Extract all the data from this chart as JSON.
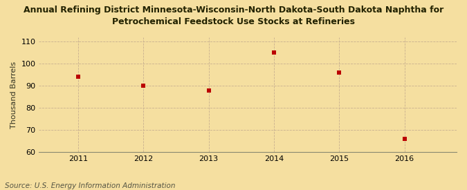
{
  "title_line1": "Annual Refining District Minnesota-Wisconsin-North Dakota-South Dakota Naphtha for",
  "title_line2": "Petrochemical Feedstock Use Stocks at Refineries",
  "ylabel": "Thousand Barrels",
  "source": "Source: U.S. Energy Information Administration",
  "years": [
    2011,
    2012,
    2013,
    2014,
    2015,
    2016
  ],
  "values": [
    94,
    90,
    88,
    105,
    96,
    66
  ],
  "ylim": [
    60,
    112
  ],
  "yticks": [
    60,
    70,
    80,
    90,
    100,
    110
  ],
  "xlim": [
    2010.4,
    2016.8
  ],
  "marker_color": "#bb0000",
  "marker": "s",
  "marker_size": 4,
  "background_color": "#f5dfa0",
  "grid_color": "#c8b090",
  "title_fontsize": 9,
  "label_fontsize": 8,
  "tick_fontsize": 8,
  "source_fontsize": 7.5
}
